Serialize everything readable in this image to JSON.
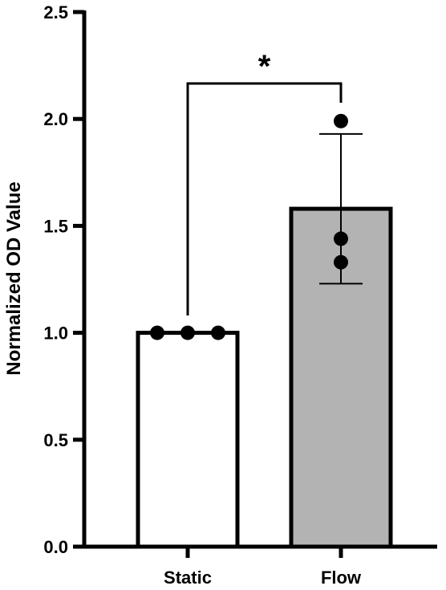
{
  "chart_data": {
    "type": "bar",
    "title": "",
    "xlabel": "",
    "ylabel": "Normalized OD Value",
    "ylim": [
      0,
      2.5
    ],
    "yticks": [
      "0.0",
      "0.5",
      "1.0",
      "1.5",
      "2.0",
      "2.5"
    ],
    "grid": false,
    "categories": [
      "Static",
      "Flow"
    ],
    "values": [
      1.0,
      1.58
    ],
    "error": [
      0.0,
      0.35
    ],
    "bar_colors": [
      "#ffffff",
      "#b3b3b3"
    ],
    "points": [
      [
        1.0,
        1.0,
        1.0
      ],
      [
        1.99,
        1.44,
        1.33
      ]
    ],
    "significance": {
      "between": [
        "Static",
        "Flow"
      ],
      "label": "*"
    }
  }
}
